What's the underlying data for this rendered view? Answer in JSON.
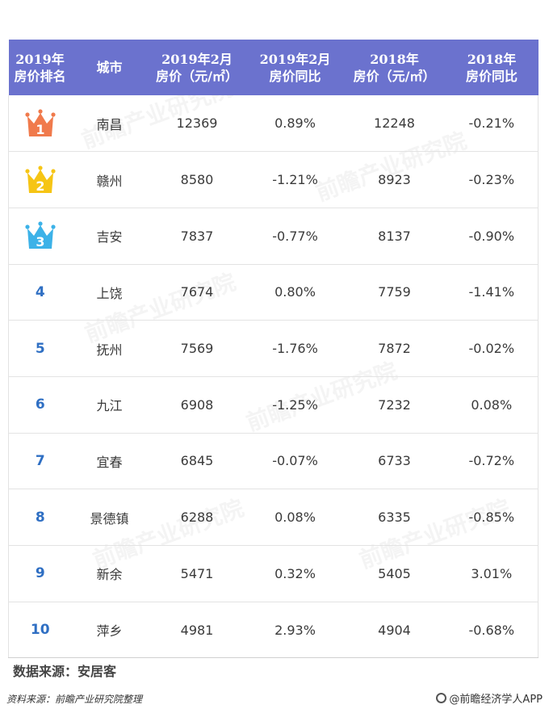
{
  "table": {
    "headers": [
      [
        "2019年",
        "房价排名"
      ],
      [
        "城市"
      ],
      [
        "2019年2月",
        "房价（元/㎡）"
      ],
      [
        "2019年2月",
        "房价同比"
      ],
      [
        "2018年",
        "房价（元/㎡）"
      ],
      [
        "2018年",
        "房价同比"
      ]
    ],
    "rows": [
      {
        "rank": "1",
        "crown": "orange",
        "city": "南昌",
        "price_2019_feb": "12369",
        "yoy_2019_feb": "0.89%",
        "price_2018": "12248",
        "yoy_2018": "-0.21%"
      },
      {
        "rank": "2",
        "crown": "yellow",
        "city": "赣州",
        "price_2019_feb": "8580",
        "yoy_2019_feb": "-1.21%",
        "price_2018": "8923",
        "yoy_2018": "-0.23%"
      },
      {
        "rank": "3",
        "crown": "blue",
        "city": "吉安",
        "price_2019_feb": "7837",
        "yoy_2019_feb": "-0.77%",
        "price_2018": "8137",
        "yoy_2018": "-0.90%"
      },
      {
        "rank": "4",
        "crown": null,
        "city": "上饶",
        "price_2019_feb": "7674",
        "yoy_2019_feb": "0.80%",
        "price_2018": "7759",
        "yoy_2018": "-1.41%"
      },
      {
        "rank": "5",
        "crown": null,
        "city": "抚州",
        "price_2019_feb": "7569",
        "yoy_2019_feb": "-1.76%",
        "price_2018": "7872",
        "yoy_2018": "-0.02%"
      },
      {
        "rank": "6",
        "crown": null,
        "city": "九江",
        "price_2019_feb": "6908",
        "yoy_2019_feb": "-1.25%",
        "price_2018": "7232",
        "yoy_2018": "0.08%"
      },
      {
        "rank": "7",
        "crown": null,
        "city": "宜春",
        "price_2019_feb": "6845",
        "yoy_2019_feb": "-0.07%",
        "price_2018": "6733",
        "yoy_2018": "-0.72%"
      },
      {
        "rank": "8",
        "crown": null,
        "city": "景德镇",
        "price_2019_feb": "6288",
        "yoy_2019_feb": "0.08%",
        "price_2018": "6335",
        "yoy_2018": "-0.85%"
      },
      {
        "rank": "9",
        "crown": null,
        "city": "新余",
        "price_2019_feb": "5471",
        "yoy_2019_feb": "0.32%",
        "price_2018": "5405",
        "yoy_2018": "3.01%"
      },
      {
        "rank": "10",
        "crown": null,
        "city": "萍乡",
        "price_2019_feb": "4981",
        "yoy_2019_feb": "2.93%",
        "price_2018": "4904",
        "yoy_2018": "-0.68%"
      }
    ]
  },
  "colors": {
    "header_bg": "#6b72ce",
    "rank_text": "#2f6fc3",
    "crown_orange": "#f07a4c",
    "crown_yellow": "#f6c515",
    "crown_blue": "#3cb2e8"
  },
  "source_line": "数据来源：安居客",
  "bottom_note": "资料来源：前瞻产业研究院整理",
  "brand": "@前瞻经济学人APP",
  "watermark": "前瞻产业研究院",
  "icons": {
    "crown": "crown-icon",
    "brand": "brand-logo-icon"
  }
}
